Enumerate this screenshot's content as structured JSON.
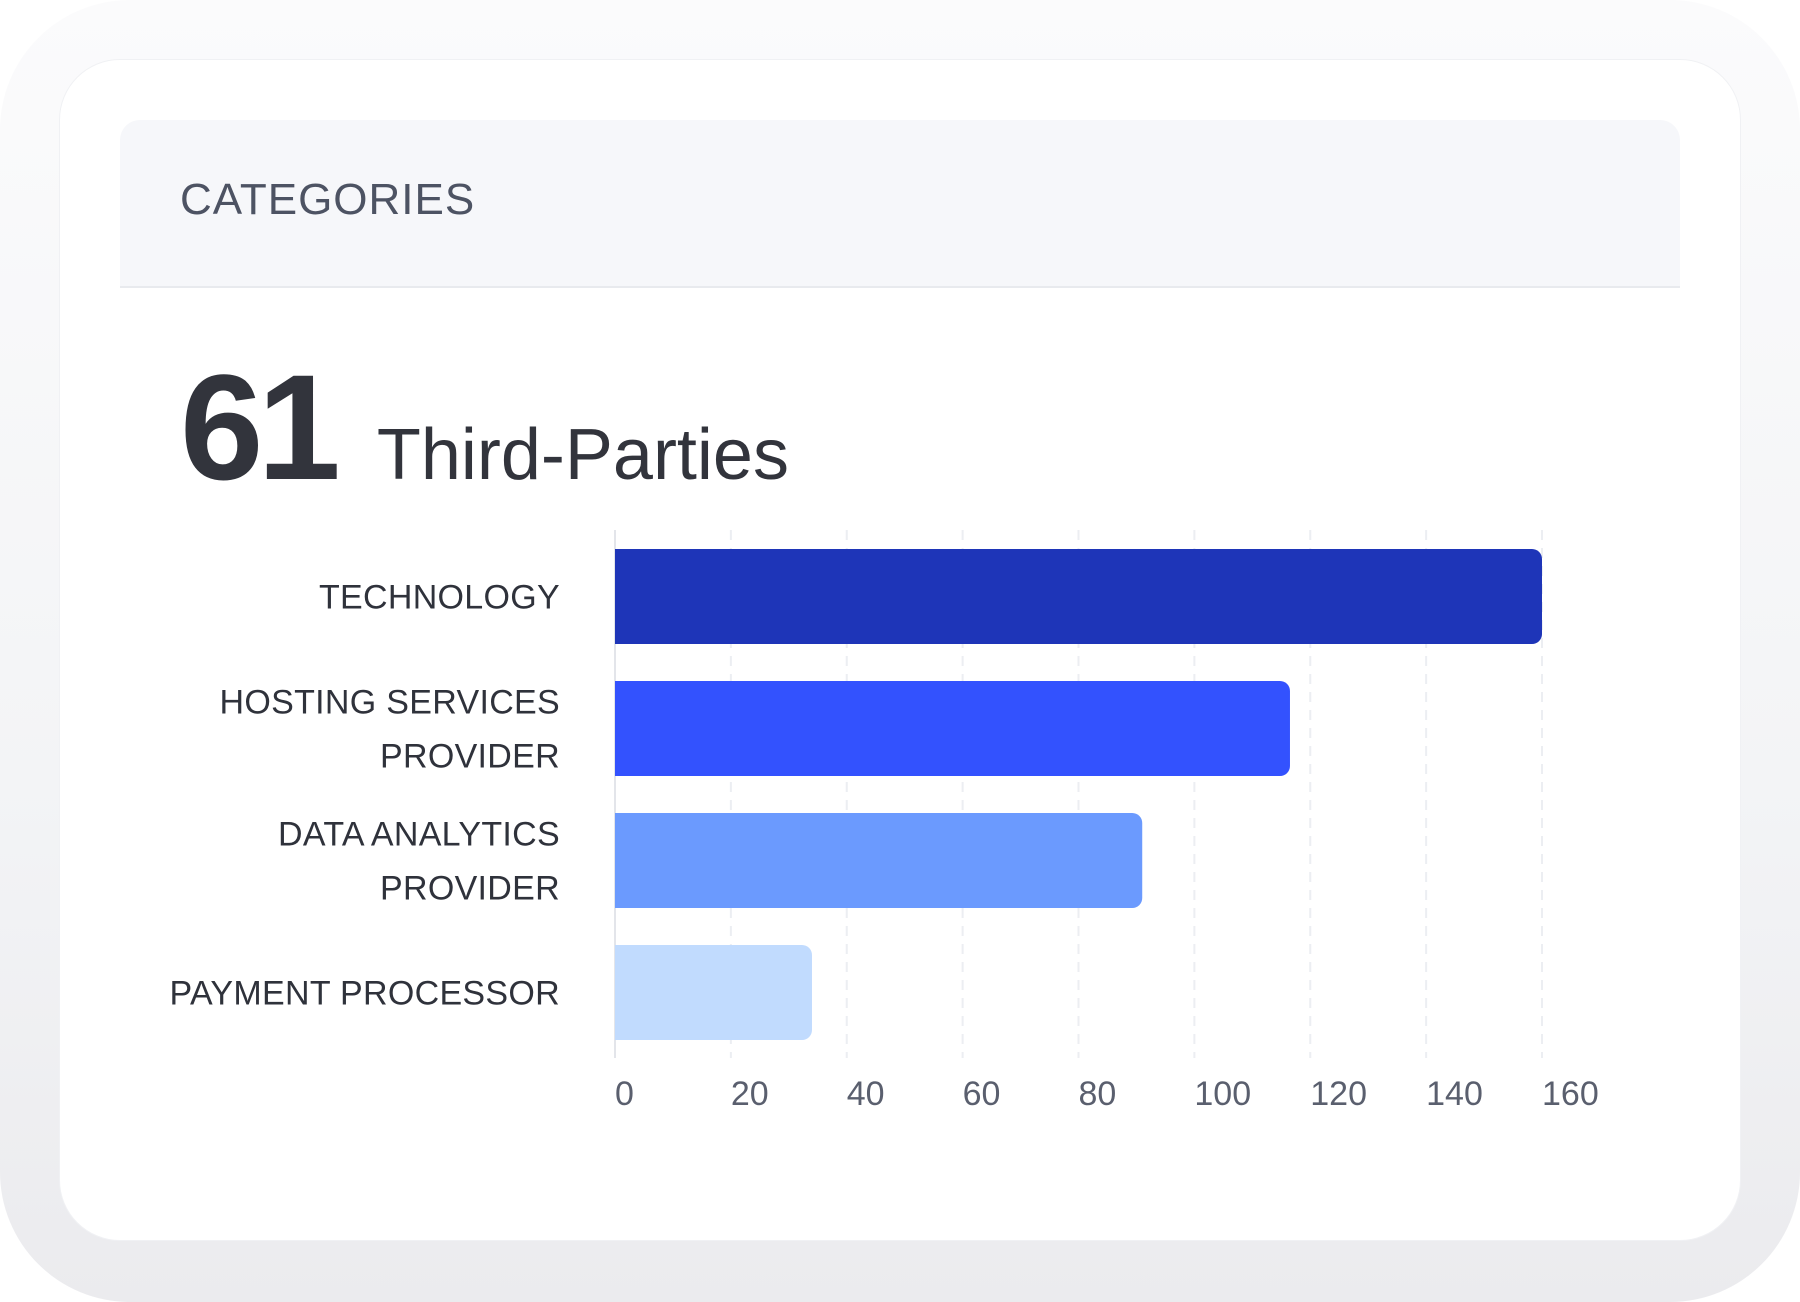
{
  "panel": {
    "title": "CATEGORIES"
  },
  "summary": {
    "count": "61",
    "label": "Third-Parties"
  },
  "chart_data": {
    "type": "bar",
    "orientation": "horizontal",
    "categories": [
      [
        "TECHNOLOGY"
      ],
      [
        "HOSTING SERVICES",
        "PROVIDER"
      ],
      [
        "DATA ANALYTICS",
        "PROVIDER"
      ],
      [
        "PAYMENT PROCESSOR"
      ]
    ],
    "values": [
      160,
      116.5,
      91,
      34
    ],
    "colors": [
      "#1e35b8",
      "#3352fe",
      "#6b9afe",
      "#c1dbfe"
    ],
    "xlim": [
      0,
      160
    ],
    "xticks": [
      0,
      20,
      40,
      60,
      80,
      100,
      120,
      140,
      160
    ],
    "grid": true,
    "legend": "none",
    "title": "",
    "xlabel": "",
    "ylabel": ""
  }
}
